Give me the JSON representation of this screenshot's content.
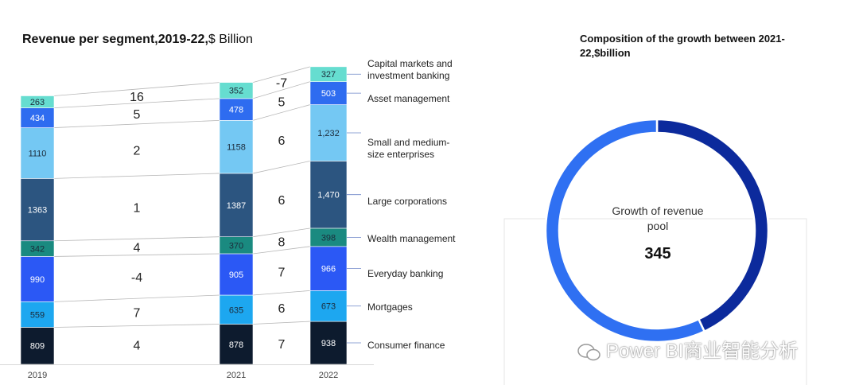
{
  "stacked_title": {
    "bold": "Revenue per segment,2019-22,",
    "normal": "$ Billion"
  },
  "donut_title": "Composition of the growth between 2021-22,$billion",
  "donut_center": {
    "label": "Growth of revenue pool",
    "value": "345"
  },
  "watermark": "Power BI商业智能分析",
  "colors": {
    "Consumer finance": "#0d1b2e",
    "Mortgages": "#1da7f0",
    "Everyday banking": "#2b58f5",
    "Wealth management": "#1a8a80",
    "Large corporations": "#2c5580",
    "Small and medium-size enterprises": "#74c8f3",
    "Asset management": "#2e6cf0",
    "Capital markets and investment banking": "#66ddd0",
    "donut_dark": "#0c2a9c",
    "donut_light": "#2f70f2"
  },
  "chart_data": [
    {
      "type": "bar",
      "stacked": true,
      "title": "Revenue per segment,2019-22,$ Billion",
      "categories": [
        "2019",
        "2021",
        "2022"
      ],
      "segments_bottom_to_top": [
        "Consumer finance",
        "Mortgages",
        "Everyday banking",
        "Wealth management",
        "Large corporations",
        "Small and medium-size enterprises",
        "Asset management",
        "Capital markets and investment banking"
      ],
      "series": [
        {
          "name": "Consumer finance",
          "values": [
            809,
            878,
            938
          ],
          "labels": [
            "809",
            "878",
            "938"
          ]
        },
        {
          "name": "Mortgages",
          "values": [
            559,
            635,
            673
          ],
          "labels": [
            "559",
            "635",
            "673"
          ]
        },
        {
          "name": "Everyday banking",
          "values": [
            990,
            905,
            966
          ],
          "labels": [
            "990",
            "905",
            "966"
          ]
        },
        {
          "name": "Wealth management",
          "values": [
            342,
            370,
            398
          ],
          "labels": [
            "342",
            "370",
            "398"
          ]
        },
        {
          "name": "Large corporations",
          "values": [
            1363,
            1387,
            1470
          ],
          "labels": [
            "1363",
            "1387",
            "1,470"
          ]
        },
        {
          "name": "Small and medium-size enterprises",
          "values": [
            1110,
            1158,
            1232
          ],
          "labels": [
            "1110",
            "1158",
            "1,232"
          ]
        },
        {
          "name": "Asset management",
          "values": [
            434,
            478,
            503
          ],
          "labels": [
            "434",
            "478",
            "503"
          ]
        },
        {
          "name": "Capital markets and investment banking",
          "values": [
            263,
            352,
            327
          ],
          "labels": [
            "263",
            "352",
            "327"
          ]
        }
      ],
      "growth_2019_2021": [
        "4",
        "7",
        "-4",
        "4",
        "1",
        "2",
        "5",
        "16"
      ],
      "growth_2021_2022": [
        "7",
        "6",
        "7",
        "8",
        "6",
        "6",
        "5",
        "-7"
      ],
      "legend": [
        "Capital markets and\ninvestment banking",
        "Asset management",
        "Small and medium-\nsize enterprises",
        "Large corporations",
        "Wealth management",
        "Everyday banking",
        "Mortgages",
        "Consumer finance"
      ]
    },
    {
      "type": "pie",
      "donut": true,
      "title": "Composition of the growth between 2021-22,$billion",
      "center_label": "Growth of revenue pool",
      "center_value": 345,
      "slices": [
        {
          "share": 0.43,
          "color": "#0c2a9c"
        },
        {
          "share": 0.57,
          "color": "#2f70f2"
        }
      ]
    }
  ]
}
